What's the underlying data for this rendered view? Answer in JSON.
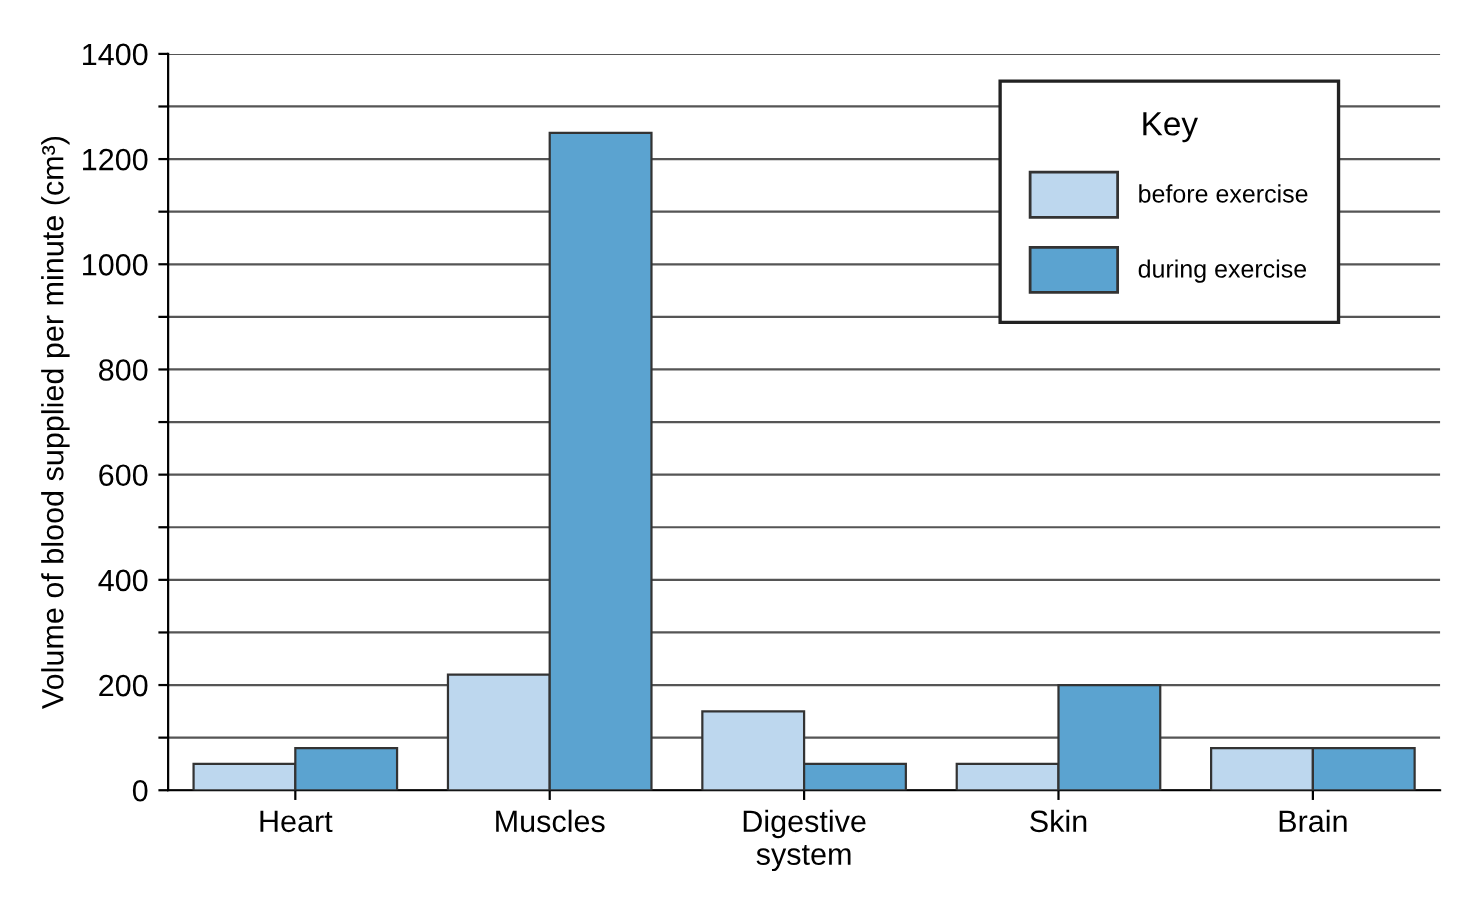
{
  "chart_data": {
    "type": "bar",
    "ylabel": "Volume of blood supplied per minute (cm³)",
    "legend_title": "Key",
    "categories": [
      "Heart",
      "Muscles",
      "Digestive\nsystem",
      "Skin",
      "Brain"
    ],
    "series": [
      {
        "name": "before exercise",
        "color": "#bdd7ee",
        "values": [
          50,
          220,
          150,
          50,
          80
        ]
      },
      {
        "name": "during exercise",
        "color": "#5ba3d0",
        "values": [
          80,
          1250,
          50,
          200,
          80
        ]
      }
    ],
    "ylim": [
      0,
      1400
    ],
    "yticks": [
      0,
      {
        "value": 100,
        "label": null
      },
      200,
      {
        "value": 300,
        "label": null
      },
      400,
      {
        "value": 500,
        "label": null
      },
      600,
      {
        "value": 700,
        "label": null
      },
      800,
      {
        "value": 900,
        "label": null
      },
      1000,
      {
        "value": 1100,
        "label": null
      },
      1200,
      {
        "value": 1300,
        "label": null
      },
      1400
    ],
    "grid": "y",
    "legend": "top right"
  }
}
